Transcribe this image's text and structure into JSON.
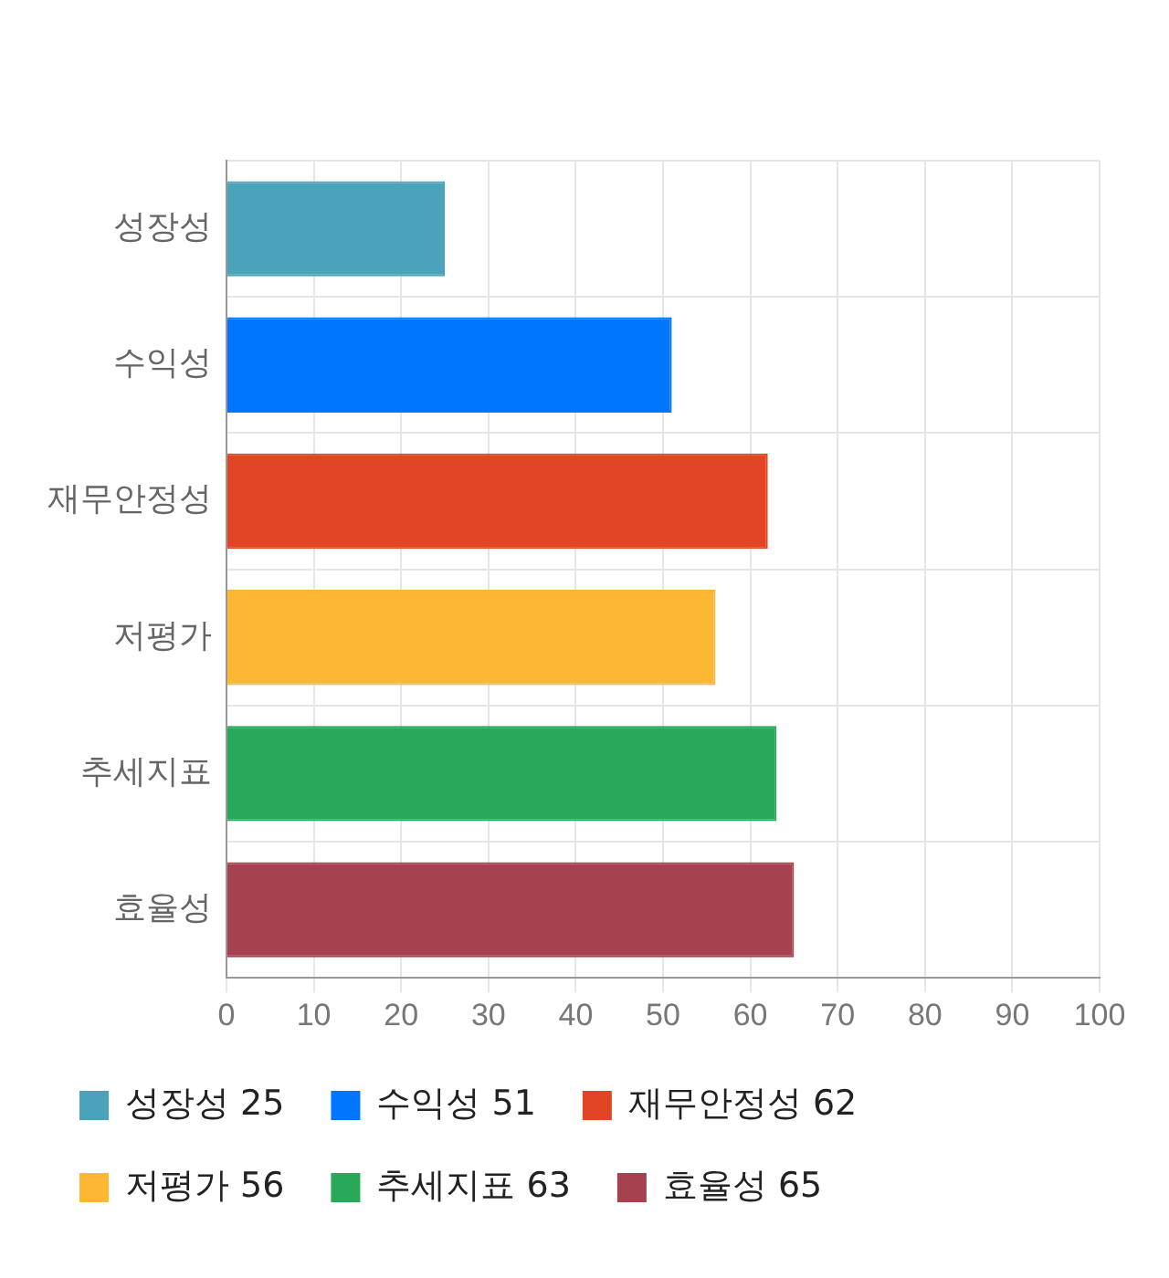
{
  "chart_data": {
    "type": "bar",
    "orientation": "horizontal",
    "categories": [
      "성장성",
      "수익성",
      "재무안정성",
      "저평가",
      "추세지표",
      "효율성"
    ],
    "series": [
      {
        "name": "성장성 25",
        "color": "#4aa3ba",
        "values": [
          25,
          null,
          null,
          null,
          null,
          null
        ]
      },
      {
        "name": "수익성 51",
        "color": "#0076ff",
        "values": [
          null,
          51,
          null,
          null,
          null,
          null
        ]
      },
      {
        "name": "재무안정성 62",
        "color": "#e24523",
        "values": [
          null,
          null,
          62,
          null,
          null,
          null
        ]
      },
      {
        "name": "저평가 56",
        "color": "#feb734",
        "values": [
          null,
          null,
          null,
          56,
          null,
          null
        ]
      },
      {
        "name": "추세지표 63",
        "color": "#28a858",
        "values": [
          null,
          null,
          null,
          null,
          63,
          null
        ]
      },
      {
        "name": "효율성 65",
        "color": "#a6414f",
        "values": [
          null,
          null,
          null,
          null,
          null,
          65
        ]
      }
    ],
    "xlim": [
      0,
      100
    ],
    "xticks": [
      0,
      10,
      20,
      30,
      40,
      50,
      60,
      70,
      80,
      90,
      100
    ],
    "grid": true,
    "legend": "bottom"
  }
}
